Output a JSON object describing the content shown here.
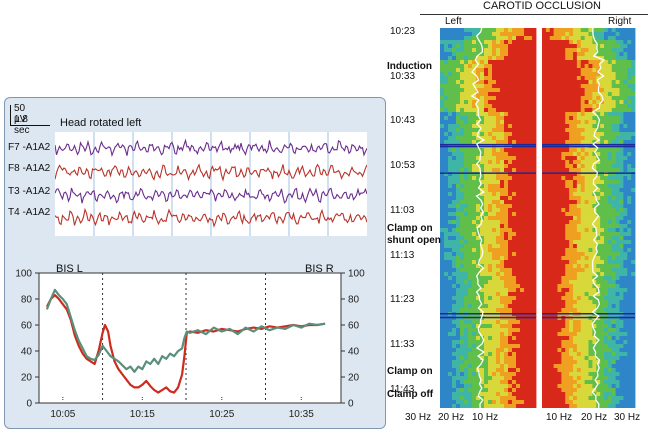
{
  "eeg": {
    "scale_amplitude": "50 µV",
    "scale_time": "1.8 sec",
    "title": "Head rotated left",
    "channels": [
      "F7 -A1A2",
      "F8 -A1A2",
      "T3 -A1A2",
      "T4 -A1A2"
    ],
    "channel_colors": [
      "#6b2d8c",
      "#b8332a",
      "#6b2d8c",
      "#b8332a"
    ]
  },
  "chart_data": [
    {
      "type": "line",
      "title": "",
      "left_label": "BIS L",
      "right_label": "BIS R",
      "ylim": [
        0,
        100
      ],
      "yticks": [
        0,
        20,
        40,
        60,
        80,
        100
      ],
      "xticks": [
        "10:05",
        "10:15",
        "10:25",
        "10:35"
      ],
      "x_minutes_range": [
        0,
        38
      ],
      "event_markers_minutes": [
        8,
        18.5,
        28.5
      ],
      "series": [
        {
          "name": "BIS L",
          "color": "#cc2b1e",
          "points": [
            [
              1,
              74
            ],
            [
              1.5,
              80
            ],
            [
              2,
              83
            ],
            [
              2.5,
              80
            ],
            [
              3,
              76
            ],
            [
              3.5,
              72
            ],
            [
              4,
              64
            ],
            [
              4.5,
              52
            ],
            [
              5,
              44
            ],
            [
              5.5,
              38
            ],
            [
              6,
              34
            ],
            [
              6.5,
              32
            ],
            [
              7,
              30
            ],
            [
              7.5,
              40
            ],
            [
              8,
              54
            ],
            [
              8.3,
              60
            ],
            [
              8.7,
              55
            ],
            [
              9,
              44
            ],
            [
              9.5,
              32
            ],
            [
              10,
              26
            ],
            [
              10.5,
              22
            ],
            [
              11,
              18
            ],
            [
              11.5,
              14
            ],
            [
              12,
              12
            ],
            [
              12.5,
              12
            ],
            [
              13,
              14
            ],
            [
              13.5,
              17
            ],
            [
              14,
              13
            ],
            [
              14.5,
              10
            ],
            [
              15,
              8
            ],
            [
              15.5,
              10
            ],
            [
              16,
              12
            ],
            [
              16.5,
              9
            ],
            [
              17,
              8
            ],
            [
              17.5,
              12
            ],
            [
              18,
              22
            ],
            [
              18.3,
              36
            ],
            [
              18.6,
              54
            ],
            [
              19,
              55
            ],
            [
              20,
              54
            ],
            [
              21,
              56
            ],
            [
              22,
              55
            ],
            [
              23,
              57
            ],
            [
              24,
              56
            ],
            [
              25,
              55
            ],
            [
              26,
              57
            ],
            [
              27,
              58
            ],
            [
              28,
              57
            ],
            [
              29,
              59
            ],
            [
              30,
              58
            ],
            [
              31,
              59
            ],
            [
              32,
              60
            ],
            [
              33,
              59
            ],
            [
              34,
              60
            ],
            [
              35,
              60
            ],
            [
              36,
              61
            ]
          ]
        },
        {
          "name": "BIS R",
          "color": "#5a8f7b",
          "points": [
            [
              1,
              72
            ],
            [
              1.5,
              80
            ],
            [
              2,
              87
            ],
            [
              2.5,
              83
            ],
            [
              3,
              80
            ],
            [
              3.5,
              76
            ],
            [
              4,
              66
            ],
            [
              4.5,
              56
            ],
            [
              5,
              48
            ],
            [
              5.5,
              42
            ],
            [
              6,
              36
            ],
            [
              6.5,
              34
            ],
            [
              7,
              33
            ],
            [
              7.5,
              37
            ],
            [
              8,
              44
            ],
            [
              8.5,
              40
            ],
            [
              9,
              36
            ],
            [
              9.5,
              34
            ],
            [
              10,
              32
            ],
            [
              10.5,
              29
            ],
            [
              11,
              26
            ],
            [
              11.5,
              28
            ],
            [
              12,
              24
            ],
            [
              12.5,
              28
            ],
            [
              13,
              26
            ],
            [
              13.5,
              32
            ],
            [
              14,
              30
            ],
            [
              14.5,
              34
            ],
            [
              15,
              30
            ],
            [
              15.5,
              36
            ],
            [
              16,
              34
            ],
            [
              16.5,
              38
            ],
            [
              17,
              36
            ],
            [
              17.5,
              40
            ],
            [
              18,
              42
            ],
            [
              18.3,
              50
            ],
            [
              18.6,
              55
            ],
            [
              19,
              54
            ],
            [
              20,
              56
            ],
            [
              21,
              53
            ],
            [
              22,
              58
            ],
            [
              23,
              55
            ],
            [
              24,
              57
            ],
            [
              25,
              53
            ],
            [
              26,
              58
            ],
            [
              27,
              55
            ],
            [
              28,
              59
            ],
            [
              29,
              56
            ],
            [
              30,
              58
            ],
            [
              31,
              57
            ],
            [
              32,
              60
            ],
            [
              33,
              58
            ],
            [
              34,
              61
            ],
            [
              35,
              60
            ],
            [
              36,
              61
            ]
          ]
        }
      ]
    },
    {
      "type": "heatmap",
      "title": "CAROTID OCCLUSION",
      "panels": [
        "Left",
        "Right"
      ],
      "xticks_left": [
        "30 Hz",
        "20 Hz",
        "10 Hz"
      ],
      "xticks_right": [
        "10 Hz",
        "20 Hz",
        "30 Hz"
      ],
      "time_labels": [
        "10:23",
        "10:33",
        "10:43",
        "10:53",
        "11:03",
        "11:13",
        "11:23",
        "11:33",
        "11:43"
      ],
      "events": [
        {
          "label": "Induction",
          "time": "10:30"
        },
        {
          "label": "Clamp on\nshunt open",
          "time": "11:06"
        },
        {
          "label": "Clamp on",
          "time": "11:37"
        },
        {
          "label": "Clamp off",
          "time": "11:42"
        }
      ],
      "colormap": [
        "#2e86c8",
        "#3fb5a8",
        "#5fbf4a",
        "#d9d83a",
        "#f0a020",
        "#d8281a"
      ]
    }
  ]
}
